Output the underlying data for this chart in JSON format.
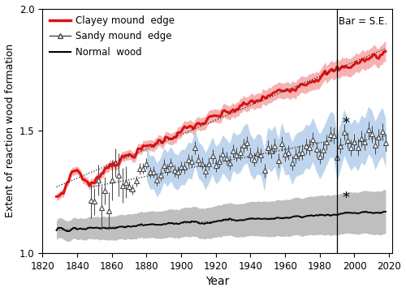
{
  "xlabel": "Year",
  "ylabel": "Extent of reaction wood formation",
  "bar_label": "Bar = S.E.",
  "xlim": [
    1820,
    2022
  ],
  "ylim": [
    1.0,
    2.0
  ],
  "xticks": [
    1820,
    1840,
    1860,
    1880,
    1900,
    1920,
    1940,
    1960,
    1980,
    2000,
    2020
  ],
  "yticks": [
    1.0,
    1.5,
    2.0
  ],
  "year_start": 1828,
  "year_end": 2018,
  "vertical_line_x": 1990,
  "star_y_top": 1.53,
  "star_y_bot": 1.225,
  "star_x": 1993,
  "clayey_color": "#dd1111",
  "clayey_se_color": "#f5aaaa",
  "sandy_line_color": "#444444",
  "sandy_se_color": "#a8c8e8",
  "normal_color": "#000000",
  "normal_se_color": "#b8b8b8",
  "dotted_color": "#222222",
  "legend_entries": [
    "Clayey mound  edge",
    "Sandy mound  edge",
    "Normal  wood"
  ],
  "figsize": [
    5.0,
    3.6
  ],
  "dpi": 100
}
